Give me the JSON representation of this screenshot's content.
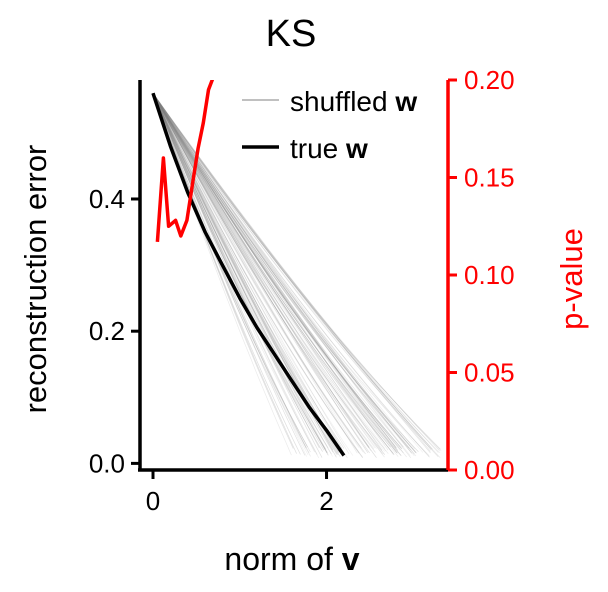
{
  "chart_data": {
    "type": "line",
    "title": "KS",
    "xlabel": {
      "text": "norm of ",
      "bold_var": "v"
    },
    "ylabel_left": "reconstruction error",
    "ylabel_right": "p-value",
    "xlim": [
      -0.15,
      3.4
    ],
    "ylim_left": [
      -0.01,
      0.58
    ],
    "ylim_right": [
      0.0,
      0.2
    ],
    "x_ticks": [
      {
        "value": 0,
        "label": "0"
      },
      {
        "value": 2,
        "label": "2"
      }
    ],
    "y_ticks_left": [
      {
        "value": 0.0,
        "label": "0.0"
      },
      {
        "value": 0.2,
        "label": "0.2"
      },
      {
        "value": 0.4,
        "label": "0.4"
      }
    ],
    "y_ticks_right": [
      {
        "value": 0.0,
        "label": "0.00"
      },
      {
        "value": 0.05,
        "label": "0.05"
      },
      {
        "value": 0.1,
        "label": "0.10"
      },
      {
        "value": 0.15,
        "label": "0.15"
      },
      {
        "value": 0.2,
        "label": "0.20"
      }
    ],
    "legend": {
      "position": "top-right",
      "entries": [
        {
          "text": "shuffled ",
          "bold_var": "w",
          "style": "thin-gray"
        },
        {
          "text": "true ",
          "bold_var": "w",
          "style": "thick-black"
        }
      ]
    },
    "series": [
      {
        "name": "true w",
        "axis": "left",
        "color": "#000000",
        "x": [
          0.0,
          0.2,
          0.4,
          0.6,
          0.8,
          1.0,
          1.2,
          1.4,
          1.6,
          1.8,
          2.0,
          2.2
        ],
        "y": [
          0.56,
          0.48,
          0.41,
          0.35,
          0.3,
          0.25,
          0.205,
          0.165,
          0.125,
          0.085,
          0.05,
          0.012
        ]
      },
      {
        "name": "p-value",
        "axis": "right",
        "color": "#ff0000",
        "x": [
          0.05,
          0.12,
          0.18,
          0.26,
          0.32,
          0.39,
          0.46,
          0.52,
          0.58,
          0.64,
          0.7
        ],
        "y": [
          0.117,
          0.16,
          0.125,
          0.128,
          0.12,
          0.128,
          0.148,
          0.165,
          0.178,
          0.195,
          0.202
        ]
      },
      {
        "name": "shuffled w",
        "axis": "left",
        "color": "#808080",
        "curves": 120,
        "start": [
          0.0,
          0.56
        ],
        "end_x_range": [
          1.55,
          3.35
        ],
        "end_y_range": [
          0.008,
          0.025
        ]
      }
    ]
  }
}
